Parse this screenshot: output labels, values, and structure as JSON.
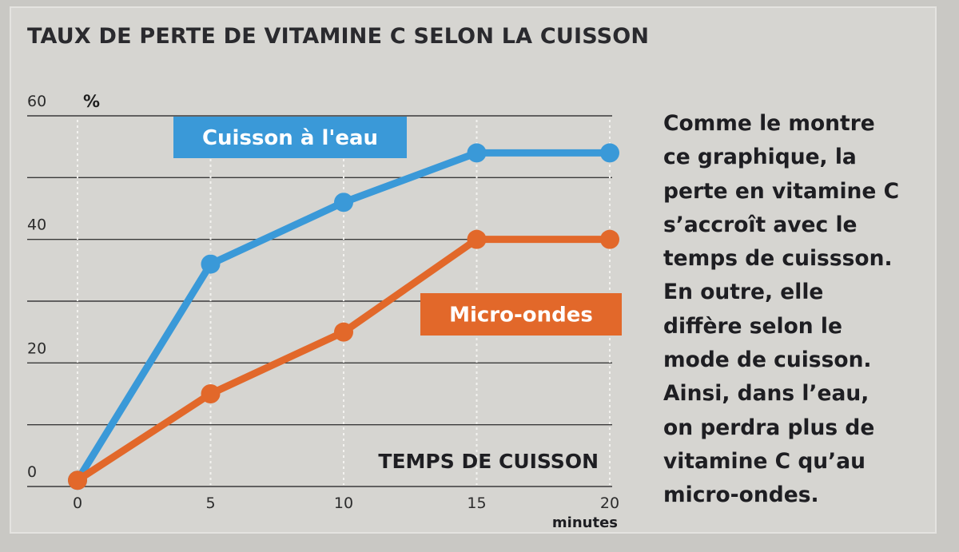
{
  "title": "TAUX DE PERTE DE VITAMINE C SELON LA CUISSON",
  "description_lines": [
    "Comme le montre",
    "ce graphique, la",
    "perte en vitamine C",
    "s’accroît avec le",
    "temps de cuissson.",
    "En outre, elle",
    "diffère selon le",
    "mode de cuisson.",
    "Ainsi, dans l’eau,",
    "on perdra plus de",
    "vitamine C qu’au",
    "micro-ondes."
  ],
  "chart_data": {
    "type": "line",
    "xlabel": "TEMPS DE CUISSON",
    "xunit": "minutes",
    "yunit": "%",
    "x": [
      0,
      5,
      10,
      15,
      20
    ],
    "xticks": [
      "0",
      "5",
      "10",
      "15",
      "20"
    ],
    "ylim": [
      0,
      60
    ],
    "yticks": [
      "0",
      "20",
      "40",
      "60"
    ],
    "ygrid": [
      10,
      20,
      30,
      40,
      50,
      60
    ],
    "grid": true,
    "series": [
      {
        "name": "Cuisson à l'eau",
        "color": "#3a99d8",
        "values": [
          1,
          36,
          46,
          54,
          54
        ]
      },
      {
        "name": "Micro-ondes",
        "color": "#e2682a",
        "values": [
          1,
          15,
          25,
          40,
          40
        ]
      }
    ]
  }
}
